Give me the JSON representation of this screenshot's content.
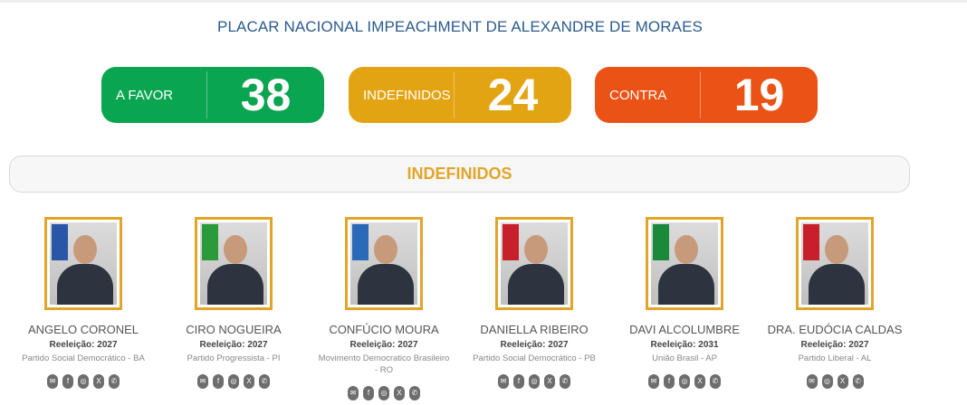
{
  "title": "PLACAR NACIONAL IMPEACHMENT DE ALEXANDRE DE MORAES",
  "score": [
    {
      "label": "A FAVOR",
      "value": "38",
      "color": "#0aa550"
    },
    {
      "label": "INDEFINIDOS",
      "value": "24",
      "color": "#e3a414"
    },
    {
      "label": "CONTRA",
      "value": "19",
      "color": "#eb5316"
    }
  ],
  "section": "INDEFINIDOS",
  "people": [
    {
      "name": "ANGELO CORONEL",
      "reelection": "Reeleição: 2027",
      "party": "Partido Social Democrático - BA",
      "icons": [
        "email-icon",
        "facebook-icon",
        "instagram-icon",
        "x-icon",
        "phone-icon"
      ]
    },
    {
      "name": "CIRO NOGUEIRA",
      "reelection": "Reeleição: 2027",
      "party": "Partido Progressista - PI",
      "icons": [
        "email-icon",
        "facebook-icon",
        "instagram-icon",
        "x-icon",
        "phone-icon"
      ]
    },
    {
      "name": "CONFÚCIO MOURA",
      "reelection": "Reeleição: 2027",
      "party": "Movimento Democratico Brasileiro - RO",
      "icons": [
        "email-icon",
        "facebook-icon",
        "instagram-icon",
        "x-icon",
        "phone-icon"
      ]
    },
    {
      "name": "DANIELLA RIBEIRO",
      "reelection": "Reeleição: 2027",
      "party": "Partido Social Democrático - PB",
      "icons": [
        "email-icon",
        "facebook-icon",
        "instagram-icon",
        "x-icon",
        "phone-icon"
      ]
    },
    {
      "name": "DAVI ALCOLUMBRE",
      "reelection": "Reeleição: 2031",
      "party": "União Brasil - AP",
      "icons": [
        "email-icon",
        "facebook-icon",
        "instagram-icon",
        "x-icon",
        "phone-icon"
      ]
    },
    {
      "name": "DRA. EUDÓCIA CALDAS",
      "reelection": "Reeleição: 2027",
      "party": "Partido Liberal - AL",
      "icons": [
        "email-icon",
        "instagram-icon",
        "x-icon",
        "phone-icon"
      ]
    }
  ]
}
